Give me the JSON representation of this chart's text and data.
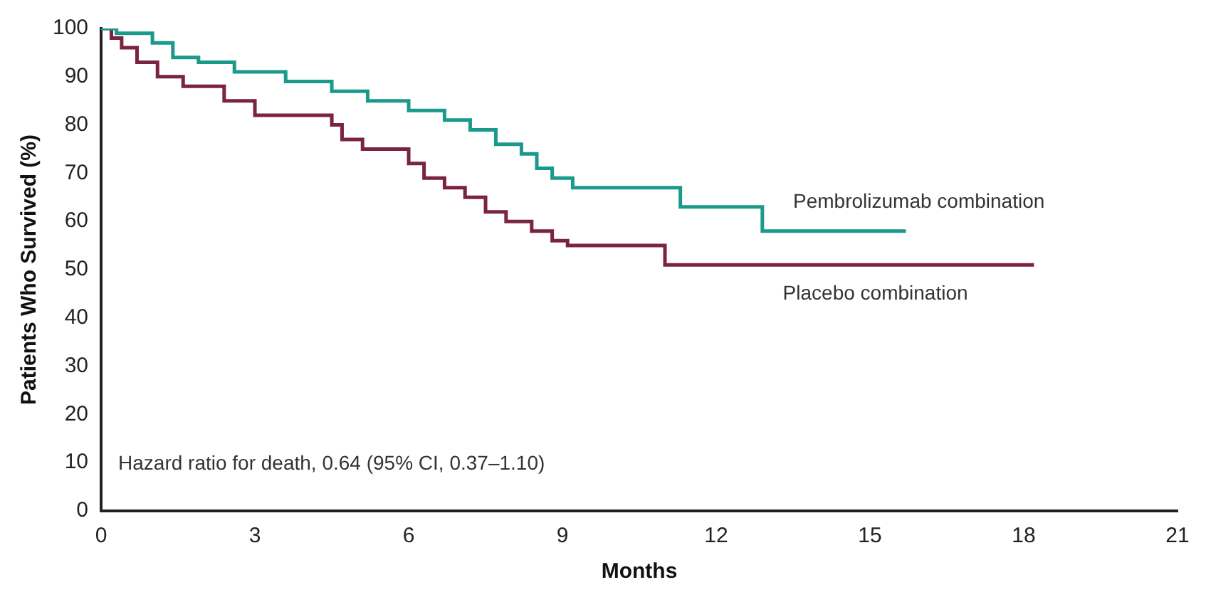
{
  "chart_data": {
    "type": "step",
    "xlabel": "Months",
    "ylabel": "Patients Who Survived (%)",
    "xlim": [
      0,
      21
    ],
    "xticks": [
      0,
      3,
      6,
      9,
      12,
      15,
      18,
      21
    ],
    "ylim": [
      0,
      100
    ],
    "yticks": [
      0,
      10,
      20,
      30,
      40,
      50,
      60,
      70,
      80,
      90,
      100
    ],
    "grid": false,
    "legend": false,
    "marker": "none",
    "annotations": [
      "Hazard ratio for death, 0.64 (95% CI, 0.37–1.10)"
    ],
    "series": [
      {
        "name": "Pembrolizumab combination",
        "color": "#1a9a8a",
        "x": [
          0,
          0.3,
          1.0,
          1.4,
          1.9,
          2.6,
          3.6,
          4.5,
          5.2,
          6.0,
          6.7,
          7.2,
          7.7,
          8.2,
          8.5,
          8.8,
          9.2,
          11.3,
          12.9,
          15.7
        ],
        "values": [
          100,
          99,
          97,
          94,
          93,
          91,
          89,
          87,
          85,
          83,
          81,
          79,
          76,
          74,
          71,
          69,
          67,
          63,
          58,
          58
        ]
      },
      {
        "name": "Placebo combination",
        "color": "#7a2440",
        "x": [
          0,
          0.2,
          0.4,
          0.7,
          1.1,
          1.6,
          2.4,
          3.0,
          4.5,
          4.7,
          5.1,
          6.0,
          6.3,
          6.7,
          7.1,
          7.5,
          7.9,
          8.4,
          8.8,
          9.1,
          11.0,
          18.2
        ],
        "values": [
          100,
          98,
          96,
          93,
          90,
          88,
          85,
          82,
          80,
          77,
          75,
          72,
          69,
          67,
          65,
          62,
          60,
          58,
          56,
          55,
          51,
          51
        ]
      }
    ]
  }
}
